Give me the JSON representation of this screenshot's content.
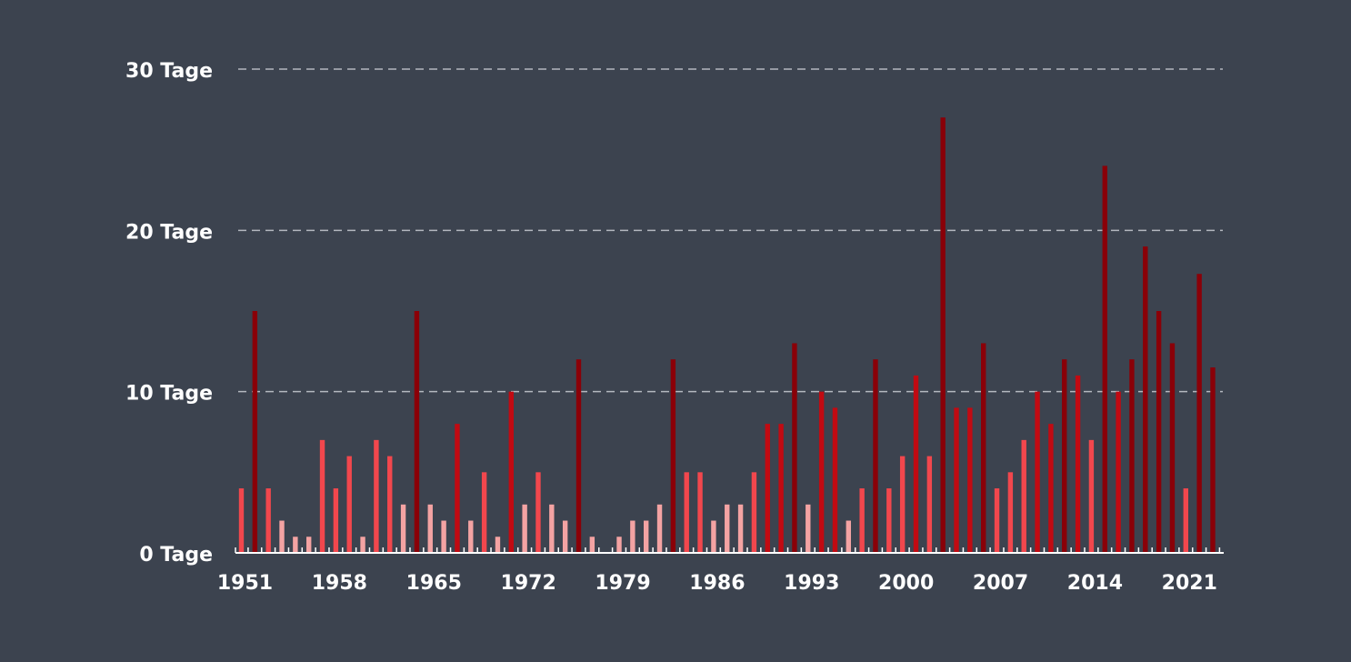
{
  "chart_data": {
    "type": "bar",
    "title": "",
    "xlabel": "",
    "ylabel": "",
    "ylim": [
      0,
      30
    ],
    "grid": true,
    "y_ticks": [
      {
        "value": 0,
        "label": "0 Tage"
      },
      {
        "value": 10,
        "label": "10 Tage"
      },
      {
        "value": 20,
        "label": "20 Tage"
      },
      {
        "value": 30,
        "label": "30 Tage"
      }
    ],
    "x_tick_labels": [
      "1951",
      "1958",
      "1965",
      "1972",
      "1979",
      "1986",
      "1993",
      "2000",
      "2007",
      "2014",
      "2021"
    ],
    "categories": [
      1951,
      1952,
      1953,
      1954,
      1955,
      1956,
      1957,
      1958,
      1959,
      1960,
      1961,
      1962,
      1963,
      1964,
      1965,
      1966,
      1967,
      1968,
      1969,
      1970,
      1971,
      1972,
      1973,
      1974,
      1975,
      1976,
      1977,
      1978,
      1979,
      1980,
      1981,
      1982,
      1983,
      1984,
      1985,
      1986,
      1987,
      1988,
      1989,
      1990,
      1991,
      1992,
      1993,
      1994,
      1995,
      1996,
      1997,
      1998,
      1999,
      2000,
      2001,
      2002,
      2003,
      2004,
      2005,
      2006,
      2007,
      2008,
      2009,
      2010,
      2011,
      2012,
      2013,
      2014,
      2015,
      2016,
      2017,
      2018,
      2019,
      2020,
      2021,
      2022,
      2023
    ],
    "values": [
      4,
      15,
      4,
      2,
      1,
      1,
      7,
      4,
      6,
      1,
      7,
      6,
      3,
      15,
      3,
      2,
      8,
      2,
      5,
      1,
      10,
      3,
      5,
      3,
      2,
      12,
      1,
      0,
      1,
      2,
      2,
      3,
      12,
      5,
      5,
      2,
      3,
      3,
      5,
      8,
      8,
      13,
      3,
      10,
      9,
      2,
      4,
      12,
      4,
      6,
      11,
      6,
      27,
      9,
      9,
      13,
      4,
      5,
      7,
      10,
      8,
      12,
      11,
      7,
      24,
      10,
      12,
      19,
      15,
      13,
      4,
      17.3,
      11.5
    ],
    "color_scale": {
      "very_light": "#f4a3a3",
      "light": "#f2474d",
      "medium": "#c10a12",
      "dark": "#8a0008"
    },
    "gridline_color": "#b4b8bf",
    "text_color": "#ffffff",
    "background_color": "#3c434f"
  }
}
